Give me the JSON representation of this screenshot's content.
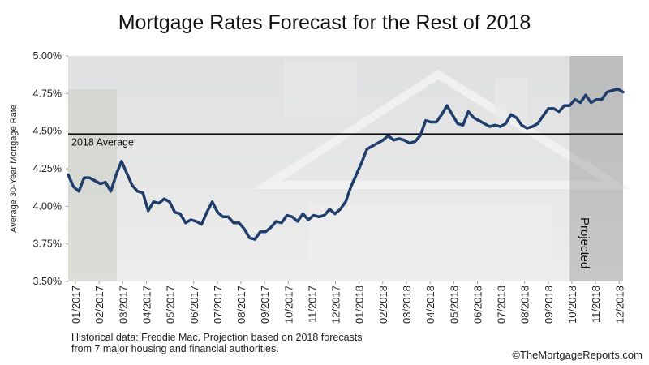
{
  "chart_data": {
    "type": "line",
    "title": "Mortgage Rates Forecast for the Rest of 2018",
    "y_label": "Average 30-Year Mortgage Rate",
    "footnote": [
      "Historical data: Freddie Mac. Projection based on 2018 forecasts",
      "from 7 major housing and financial authorities."
    ],
    "credit": "©TheMortgageReports.com",
    "x": [
      0,
      1,
      2,
      3,
      4,
      5,
      6,
      7,
      8,
      9,
      10,
      11,
      12,
      13,
      14,
      15,
      16,
      17,
      18,
      19,
      20,
      21,
      22,
      23,
      24,
      25,
      26,
      27,
      28,
      29,
      30,
      31,
      32,
      33,
      34,
      35,
      36,
      37,
      38,
      39,
      40,
      41,
      42,
      43,
      44,
      45,
      46,
      47,
      48,
      49,
      50,
      51,
      52,
      53,
      54,
      55,
      56,
      57,
      58,
      59,
      60,
      61,
      62,
      63,
      64,
      65,
      66,
      67,
      68,
      69,
      70,
      71,
      72,
      73,
      74,
      75,
      76,
      77,
      78,
      79,
      80,
      81,
      82,
      83,
      84,
      85,
      86,
      87,
      88,
      89,
      90,
      91,
      92,
      93,
      94,
      95,
      96,
      97,
      98,
      99,
      100,
      101,
      102,
      103,
      104
    ],
    "series": [
      {
        "name": "30-Year Mortgage Rate",
        "color": "#1f3e6b",
        "values": [
          4.21,
          4.13,
          4.1,
          4.19,
          4.19,
          4.17,
          4.15,
          4.16,
          4.1,
          4.21,
          4.3,
          4.22,
          4.14,
          4.1,
          4.09,
          3.97,
          4.03,
          4.02,
          4.05,
          4.03,
          3.96,
          3.95,
          3.89,
          3.91,
          3.9,
          3.88,
          3.96,
          4.03,
          3.96,
          3.93,
          3.93,
          3.89,
          3.89,
          3.85,
          3.79,
          3.78,
          3.83,
          3.83,
          3.86,
          3.9,
          3.89,
          3.94,
          3.93,
          3.9,
          3.95,
          3.91,
          3.94,
          3.93,
          3.94,
          3.98,
          3.95,
          3.98,
          4.03,
          4.13,
          4.21,
          4.29,
          4.38,
          4.4,
          4.42,
          4.44,
          4.47,
          4.44,
          4.45,
          4.44,
          4.42,
          4.43,
          4.47,
          4.57,
          4.56,
          4.56,
          4.61,
          4.67,
          4.61,
          4.55,
          4.54,
          4.63,
          4.59,
          4.57,
          4.55,
          4.53,
          4.54,
          4.53,
          4.55,
          4.61,
          4.59,
          4.54,
          4.52,
          4.53,
          4.55,
          4.6,
          4.65,
          4.65,
          4.63,
          4.67,
          4.67,
          4.71,
          4.69,
          4.74,
          4.69,
          4.71,
          4.71,
          4.76,
          4.77,
          4.78,
          4.76
        ]
      }
    ],
    "xlim": [
      0,
      104
    ],
    "xticks": [
      {
        "value": 1.37,
        "label": "01/2017"
      },
      {
        "value": 5.8,
        "label": "02/2017"
      },
      {
        "value": 10.23,
        "label": "03/2017"
      },
      {
        "value": 14.66,
        "label": "04/2017"
      },
      {
        "value": 19.09,
        "label": "05/2017"
      },
      {
        "value": 23.53,
        "label": "06/2017"
      },
      {
        "value": 27.96,
        "label": "07/2017"
      },
      {
        "value": 32.39,
        "label": "08/2017"
      },
      {
        "value": 36.82,
        "label": "09/2017"
      },
      {
        "value": 41.25,
        "label": "10/2017"
      },
      {
        "value": 45.68,
        "label": "11/2017"
      },
      {
        "value": 50.11,
        "label": "12/2017"
      },
      {
        "value": 54.54,
        "label": "01/2018"
      },
      {
        "value": 58.97,
        "label": "02/2018"
      },
      {
        "value": 63.4,
        "label": "03/2018"
      },
      {
        "value": 67.84,
        "label": "04/2018"
      },
      {
        "value": 72.27,
        "label": "05/2018"
      },
      {
        "value": 76.7,
        "label": "06/2018"
      },
      {
        "value": 81.13,
        "label": "07/2018"
      },
      {
        "value": 85.56,
        "label": "08/2018"
      },
      {
        "value": 89.99,
        "label": "09/2018"
      },
      {
        "value": 94.42,
        "label": "10/2018"
      },
      {
        "value": 98.85,
        "label": "11/2018"
      },
      {
        "value": 103.28,
        "label": "12/2018"
      }
    ],
    "ylim": [
      3.5,
      5.0
    ],
    "yticks": [
      {
        "value": 3.5,
        "label": "3.50%"
      },
      {
        "value": 3.75,
        "label": "3.75%"
      },
      {
        "value": 4.0,
        "label": "4.00%"
      },
      {
        "value": 4.25,
        "label": "4.25%"
      },
      {
        "value": 4.5,
        "label": "4.50%"
      },
      {
        "value": 4.75,
        "label": "4.75%"
      },
      {
        "value": 5.0,
        "label": "5.00%"
      }
    ],
    "average": {
      "label": "2018 Average",
      "value": 4.48
    },
    "projected": {
      "label": "Projected",
      "x": 94
    }
  }
}
